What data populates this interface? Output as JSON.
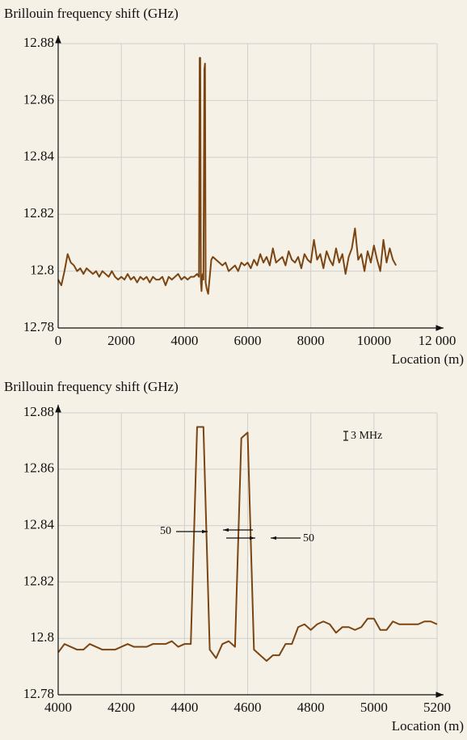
{
  "chart_data": [
    {
      "type": "line",
      "y_label": "Brillouin frequency shift (GHz)",
      "x_label": "Location (m)",
      "x": [
        0,
        100,
        200,
        300,
        400,
        500,
        600,
        700,
        800,
        900,
        1000,
        1100,
        1200,
        1300,
        1400,
        1500,
        1600,
        1700,
        1800,
        1900,
        2000,
        2100,
        2200,
        2300,
        2400,
        2500,
        2600,
        2700,
        2800,
        2900,
        3000,
        3100,
        3200,
        3300,
        3400,
        3500,
        3600,
        3700,
        3800,
        3900,
        4000,
        4100,
        4200,
        4300,
        4400,
        4460,
        4480,
        4500,
        4520,
        4540,
        4560,
        4580,
        4600,
        4630,
        4650,
        4670,
        4700,
        4750,
        4800,
        4850,
        4900,
        5000,
        5100,
        5200,
        5300,
        5400,
        5500,
        5600,
        5700,
        5800,
        5900,
        6000,
        6100,
        6200,
        6300,
        6400,
        6500,
        6600,
        6700,
        6800,
        6900,
        7000,
        7100,
        7200,
        7300,
        7400,
        7500,
        7600,
        7700,
        7800,
        7900,
        8000,
        8100,
        8200,
        8300,
        8400,
        8500,
        8600,
        8700,
        8800,
        8900,
        9000,
        9100,
        9200,
        9300,
        9400,
        9500,
        9600,
        9700,
        9800,
        9900,
        10000,
        10100,
        10200,
        10300,
        10400,
        10500,
        10600,
        10700
      ],
      "color": "#7a4513",
      "values": [
        12.797,
        12.795,
        12.8,
        12.806,
        12.803,
        12.802,
        12.8,
        12.801,
        12.799,
        12.801,
        12.8,
        12.799,
        12.8,
        12.798,
        12.8,
        12.799,
        12.798,
        12.8,
        12.798,
        12.797,
        12.798,
        12.797,
        12.799,
        12.797,
        12.798,
        12.796,
        12.798,
        12.797,
        12.798,
        12.796,
        12.798,
        12.797,
        12.797,
        12.798,
        12.795,
        12.798,
        12.797,
        12.798,
        12.799,
        12.797,
        12.798,
        12.797,
        12.798,
        12.798,
        12.799,
        12.798,
        12.875,
        12.875,
        12.796,
        12.793,
        12.798,
        12.799,
        12.797,
        12.871,
        12.873,
        12.796,
        12.794,
        12.792,
        12.798,
        12.804,
        12.805,
        12.804,
        12.803,
        12.802,
        12.803,
        12.8,
        12.801,
        12.802,
        12.8,
        12.803,
        12.802,
        12.803,
        12.801,
        12.804,
        12.802,
        12.806,
        12.803,
        12.805,
        12.802,
        12.808,
        12.803,
        12.804,
        12.805,
        12.802,
        12.807,
        12.804,
        12.803,
        12.805,
        12.801,
        12.806,
        12.804,
        12.803,
        12.811,
        12.804,
        12.806,
        12.801,
        12.807,
        12.804,
        12.802,
        12.808,
        12.803,
        12.806,
        12.799,
        12.805,
        12.808,
        12.815,
        12.804,
        12.806,
        12.8,
        12.807,
        12.803,
        12.809,
        12.804,
        12.8,
        12.811,
        12.803,
        12.808,
        12.804,
        12.802
      ],
      "xlim": [
        0,
        12000
      ],
      "ylim": [
        12.78,
        12.88
      ],
      "xticks": [
        0,
        2000,
        4000,
        6000,
        8000,
        10000,
        {
          "value": 12000,
          "label": "12 000"
        }
      ],
      "yticks": [
        12.78,
        12.8,
        12.82,
        12.84,
        12.86,
        12.88
      ],
      "grid": true
    },
    {
      "type": "line",
      "y_label": "Brillouin frequency shift (GHz)",
      "x_label": "Location (m)",
      "x": [
        4000,
        4020,
        4040,
        4060,
        4080,
        4100,
        4120,
        4140,
        4160,
        4180,
        4200,
        4220,
        4240,
        4260,
        4280,
        4300,
        4320,
        4340,
        4360,
        4380,
        4400,
        4420,
        4440,
        4460,
        4480,
        4500,
        4520,
        4540,
        4560,
        4580,
        4600,
        4620,
        4640,
        4660,
        4680,
        4700,
        4720,
        4740,
        4760,
        4780,
        4800,
        4820,
        4840,
        4860,
        4880,
        4900,
        4920,
        4940,
        4960,
        4980,
        5000,
        5020,
        5040,
        5060,
        5080,
        5100,
        5120,
        5140,
        5160,
        5180,
        5200
      ],
      "color": "#7a4513",
      "values": [
        12.795,
        12.798,
        12.797,
        12.796,
        12.796,
        12.798,
        12.797,
        12.796,
        12.796,
        12.796,
        12.797,
        12.798,
        12.797,
        12.797,
        12.797,
        12.798,
        12.798,
        12.798,
        12.799,
        12.797,
        12.798,
        12.798,
        12.875,
        12.875,
        12.796,
        12.793,
        12.798,
        12.799,
        12.797,
        12.871,
        12.873,
        12.796,
        12.794,
        12.792,
        12.794,
        12.794,
        12.798,
        12.798,
        12.804,
        12.805,
        12.803,
        12.805,
        12.806,
        12.805,
        12.802,
        12.804,
        12.804,
        12.803,
        12.804,
        12.807,
        12.807,
        12.803,
        12.803,
        12.806,
        12.805,
        12.805,
        12.805,
        12.805,
        12.806,
        12.806,
        12.805
      ],
      "xlim": [
        4000,
        5200
      ],
      "ylim": [
        12.78,
        12.88
      ],
      "xticks": [
        4000,
        4200,
        4400,
        4600,
        4800,
        5000,
        5200
      ],
      "yticks": [
        12.78,
        12.8,
        12.82,
        12.84,
        12.86,
        12.88
      ],
      "grid": true,
      "annotations": [
        "50",
        "50",
        "3 MHz"
      ]
    }
  ]
}
